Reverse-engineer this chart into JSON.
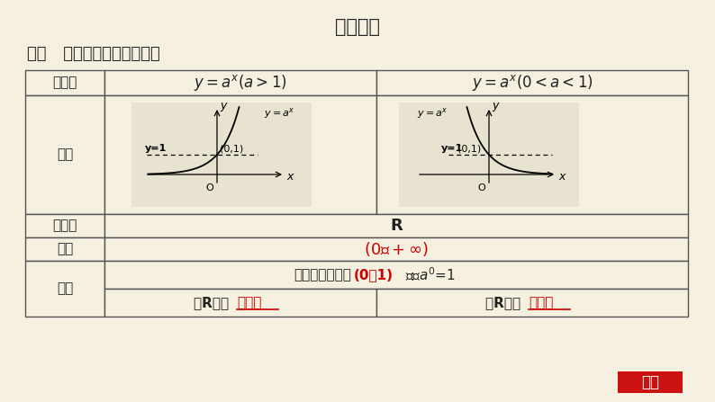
{
  "bg_color": "#f5f0e0",
  "title": "教材要点",
  "subtitle": "要点   指数函数的图象与性质",
  "table_border_color": "#555555",
  "cell_bg_light": "#f5f0e0",
  "red_color": "#cc0000",
  "black_color": "#222222",
  "answer_btn_color": "#cc1111",
  "answer_btn_text": "答案"
}
